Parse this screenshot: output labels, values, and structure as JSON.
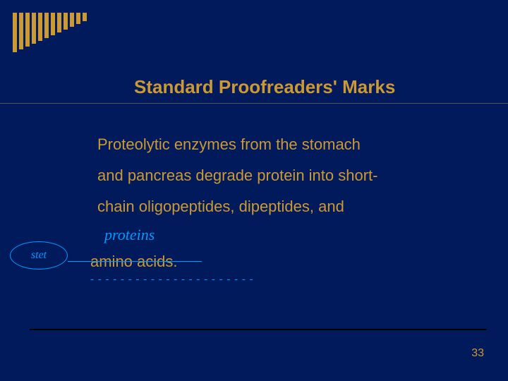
{
  "colors": {
    "background": "#001a5c",
    "accent": "#cc9933",
    "edit": "#0099ff"
  },
  "stripes": {
    "count": 12,
    "heights": [
      56,
      52,
      48,
      44,
      40,
      36,
      32,
      28,
      24,
      20,
      16,
      12
    ]
  },
  "title": "Standard Proofreaders' Marks",
  "body": {
    "line1": "Proteolytic enzymes from the stomach",
    "line2": "and pancreas degrade protein into short-",
    "line3": "chain oligopeptides, dipeptides, and"
  },
  "insertion": "proteins",
  "crossed_out": "amino acids.",
  "dash_marks": "- - - - - - - - - - - - - - - - - - - - - -",
  "stet_label": "stet",
  "page_number": "33"
}
